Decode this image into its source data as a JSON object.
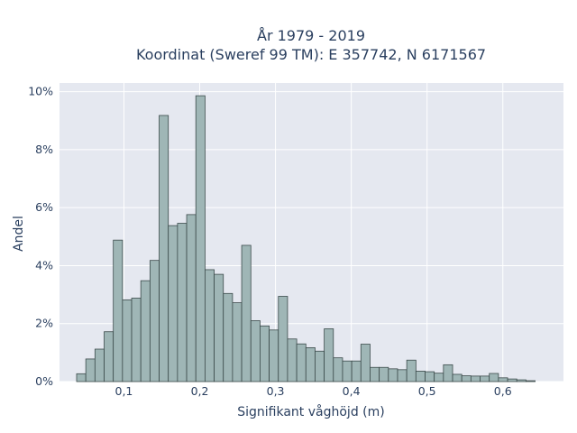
{
  "chart_data": {
    "type": "bar",
    "title_lines": [
      "År 1979 - 2019",
      "Koordinat (Sweref 99 TM): E 357742, N 6171567"
    ],
    "xlabel": "Signifikant våghöjd (m)",
    "ylabel": "Andel",
    "xlim": [
      0.015,
      0.68
    ],
    "ylim": [
      0,
      10.3
    ],
    "x_ticks": [
      0.1,
      0.2,
      0.3,
      0.4,
      0.5,
      0.6
    ],
    "x_tick_labels": [
      "0,1",
      "0,2",
      "0,3",
      "0,4",
      "0,5",
      "0,6"
    ],
    "y_ticks": [
      0,
      2,
      4,
      6,
      8,
      10
    ],
    "y_tick_labels": [
      "0%",
      "2%",
      "4%",
      "6%",
      "8%",
      "10%"
    ],
    "grid": true,
    "bin_width": 0.0121,
    "bin_start": 0.0376,
    "values": [
      0.27,
      0.78,
      1.12,
      1.72,
      4.88,
      2.82,
      2.88,
      3.48,
      4.18,
      9.18,
      5.38,
      5.46,
      5.76,
      9.86,
      3.86,
      3.7,
      3.04,
      2.72,
      4.7,
      2.1,
      1.92,
      1.78,
      2.94,
      1.47,
      1.3,
      1.17,
      1.05,
      1.82,
      0.82,
      0.71,
      0.71,
      1.29,
      0.49,
      0.49,
      0.44,
      0.41,
      0.74,
      0.36,
      0.34,
      0.29,
      0.58,
      0.25,
      0.2,
      0.19,
      0.19,
      0.28,
      0.13,
      0.09,
      0.06,
      0.03
    ],
    "colors": {
      "bar_fill": "#9fb6b6",
      "bar_edge": "#3c4b4b",
      "plot_bg": "#e5e8f0"
    }
  }
}
